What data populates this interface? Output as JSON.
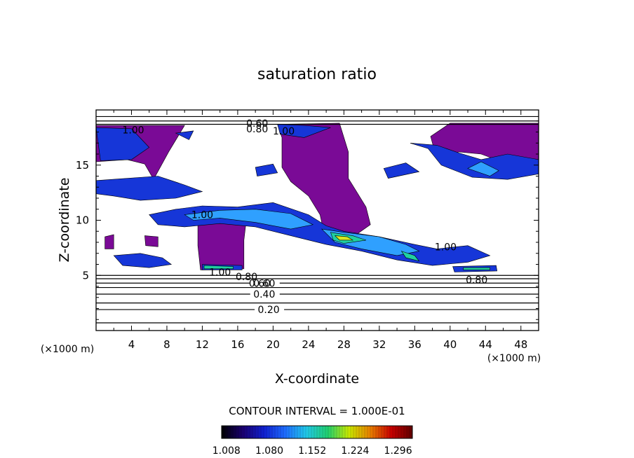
{
  "chart_data": {
    "type": "heatmap",
    "title": "saturation ratio",
    "xlabel": "X-coordinate",
    "ylabel": "Z-coordinate",
    "x_unit_label": "(×1000 m)",
    "z_unit_label": "(×1000 m)",
    "xlim": [
      0,
      50
    ],
    "ylim": [
      0,
      20
    ],
    "x_ticks": [
      4,
      8,
      12,
      16,
      20,
      24,
      28,
      32,
      36,
      40,
      44,
      48
    ],
    "y_ticks": [
      5,
      10,
      15
    ],
    "contour_interval_label": "CONTOUR INTERVAL = 1.000E-01",
    "colorbar": {
      "range": [
        1.0,
        1.32
      ],
      "tick_values": [
        1.008,
        1.08,
        1.152,
        1.224,
        1.296
      ],
      "tick_labels": [
        "1.008",
        "1.080",
        "1.152",
        "1.224",
        "1.296"
      ],
      "colors": [
        "#000000",
        "#1a0070",
        "#1020d0",
        "#1e6cff",
        "#20c8e8",
        "#20d070",
        "#c8e800",
        "#e88000",
        "#c80000",
        "#600000"
      ]
    },
    "fill_colors": {
      "saturated_purple": "#7a0a96",
      "low": "#1636d8",
      "mid": "#2fa0ff",
      "mid_high": "#20d0a0",
      "high": "#d8e820"
    },
    "contour_levels_z": [
      {
        "z": 0.7,
        "label": "",
        "label_x": 0
      },
      {
        "z": 1.9,
        "label": "0.20",
        "label_x": 19.5
      },
      {
        "z": 2.5,
        "label": "",
        "label_x": 0
      },
      {
        "z": 3.3,
        "label": "0.40",
        "label_x": 19
      },
      {
        "z": 3.9,
        "label": "",
        "label_x": 0
      },
      {
        "z": 4.3,
        "label": "0.60",
        "label_x": 19
      },
      {
        "z": 4.7,
        "label": "",
        "label_x": 0
      },
      {
        "z": 5.0,
        "label": "",
        "label_x": 0
      }
    ],
    "contour_labels": [
      {
        "text": "1.00",
        "x": 4.2,
        "z": 18.2
      },
      {
        "text": "0.60",
        "x": 18.2,
        "z": 18.8
      },
      {
        "text": "0.80",
        "x": 18.2,
        "z": 18.3
      },
      {
        "text": "1.00",
        "x": 21.2,
        "z": 18.1
      },
      {
        "text": "1.00",
        "x": 12.0,
        "z": 10.5
      },
      {
        "text": "1.00",
        "x": 14.0,
        "z": 5.3
      },
      {
        "text": "0.80",
        "x": 17.0,
        "z": 4.9
      },
      {
        "text": "0.60",
        "x": 18.5,
        "z": 4.3
      },
      {
        "text": "0.80",
        "x": 43.0,
        "z": 4.6
      },
      {
        "text": "1.00",
        "x": 39.5,
        "z": 7.6
      }
    ],
    "regions": [
      {
        "color": "saturated_purple",
        "points": [
          [
            0,
            18.6
          ],
          [
            10,
            18.6
          ],
          [
            8.2,
            16.2
          ],
          [
            6.5,
            13.7
          ],
          [
            5.5,
            15.1
          ],
          [
            3.5,
            15.5
          ],
          [
            0,
            15.3
          ]
        ]
      },
      {
        "color": "low",
        "points": [
          [
            0,
            18.4
          ],
          [
            4,
            18.3
          ],
          [
            6,
            16.6
          ],
          [
            4,
            15.5
          ],
          [
            0.5,
            15.4
          ]
        ]
      },
      {
        "color": "saturated_purple",
        "points": [
          [
            20.5,
            18.7
          ],
          [
            27.5,
            18.8
          ],
          [
            28.5,
            16.2
          ],
          [
            28.5,
            13.8
          ],
          [
            30.5,
            11.2
          ],
          [
            31,
            9.6
          ],
          [
            28.5,
            8.2
          ],
          [
            25.8,
            8.7
          ],
          [
            25.3,
            10.5
          ],
          [
            24,
            12.2
          ],
          [
            22,
            13.5
          ],
          [
            21,
            14.8
          ],
          [
            21,
            17.5
          ]
        ]
      },
      {
        "color": "low",
        "points": [
          [
            20.5,
            18.7
          ],
          [
            23.5,
            18.6
          ],
          [
            26.5,
            18.4
          ],
          [
            23.5,
            17.5
          ],
          [
            20.8,
            17.8
          ]
        ]
      },
      {
        "color": "saturated_purple",
        "points": [
          [
            37.8,
            17.6
          ],
          [
            40,
            18.8
          ],
          [
            50,
            18.8
          ],
          [
            50,
            14.8
          ],
          [
            47.5,
            14.6
          ],
          [
            45.5,
            15.4
          ],
          [
            43.5,
            16.0
          ],
          [
            41,
            16.2
          ],
          [
            38.5,
            15.5
          ]
        ]
      },
      {
        "color": "low",
        "points": [
          [
            35.5,
            17.0
          ],
          [
            37.5,
            16.5
          ],
          [
            39,
            15.0
          ],
          [
            42.5,
            13.9
          ],
          [
            46.5,
            13.7
          ],
          [
            50,
            14.2
          ],
          [
            50,
            15.5
          ],
          [
            46.5,
            16.0
          ],
          [
            43.5,
            15.5
          ],
          [
            41,
            16.1
          ],
          [
            38.5,
            16.8
          ]
        ]
      },
      {
        "color": "mid",
        "points": [
          [
            42,
            14.7
          ],
          [
            44.5,
            14.0
          ],
          [
            45.5,
            14.5
          ],
          [
            43.5,
            15.3
          ]
        ]
      },
      {
        "color": "low",
        "points": [
          [
            0,
            13.6
          ],
          [
            7,
            14.0
          ],
          [
            10,
            13.2
          ],
          [
            12,
            12.6
          ],
          [
            9,
            12.0
          ],
          [
            5,
            11.8
          ],
          [
            2,
            12.2
          ],
          [
            0,
            12.4
          ]
        ]
      },
      {
        "color": "saturated_purple",
        "points": [
          [
            11.5,
            11.0
          ],
          [
            14,
            11.0
          ],
          [
            17,
            10.2
          ],
          [
            16.7,
            8.2
          ],
          [
            16.7,
            5.6
          ],
          [
            11.8,
            5.5
          ],
          [
            11.5,
            7.7
          ]
        ]
      },
      {
        "color": "low",
        "points": [
          [
            6,
            10.5
          ],
          [
            9,
            11.0
          ],
          [
            12,
            11.3
          ],
          [
            16,
            11.2
          ],
          [
            20,
            11.6
          ],
          [
            24,
            10.5
          ],
          [
            26,
            9.5
          ],
          [
            28,
            9.0
          ],
          [
            32,
            8.5
          ],
          [
            36,
            7.8
          ],
          [
            38.5,
            7.4
          ],
          [
            42,
            7.7
          ],
          [
            44.5,
            6.8
          ],
          [
            42,
            6.2
          ],
          [
            38,
            5.9
          ],
          [
            34,
            6.4
          ],
          [
            30,
            7.2
          ],
          [
            26,
            7.8
          ],
          [
            22,
            8.6
          ],
          [
            18,
            9.4
          ],
          [
            14,
            9.7
          ],
          [
            10,
            9.4
          ],
          [
            7,
            9.6
          ]
        ]
      },
      {
        "color": "mid",
        "points": [
          [
            10,
            10.5
          ],
          [
            14,
            10.9
          ],
          [
            18,
            11.0
          ],
          [
            22,
            10.6
          ],
          [
            24.5,
            9.6
          ],
          [
            22,
            9.2
          ],
          [
            18,
            9.8
          ],
          [
            14,
            10.2
          ],
          [
            11,
            10.0
          ]
        ]
      },
      {
        "color": "mid",
        "points": [
          [
            25.5,
            9.2
          ],
          [
            28,
            8.9
          ],
          [
            32,
            8.5
          ],
          [
            35,
            7.8
          ],
          [
            36.5,
            7.2
          ],
          [
            34,
            6.8
          ],
          [
            30,
            7.4
          ],
          [
            27,
            8.0
          ]
        ]
      },
      {
        "color": "mid_high",
        "points": [
          [
            26.5,
            8.9
          ],
          [
            29,
            8.6
          ],
          [
            30.5,
            8.2
          ],
          [
            28,
            7.9
          ],
          [
            26.8,
            8.2
          ]
        ]
      },
      {
        "color": "high",
        "points": [
          [
            27,
            8.6
          ],
          [
            28.4,
            8.5
          ],
          [
            29,
            8.2
          ],
          [
            27.5,
            8.2
          ]
        ]
      },
      {
        "color": "mid_high",
        "points": [
          [
            34.5,
            7.2
          ],
          [
            36,
            6.8
          ],
          [
            36.5,
            6.3
          ],
          [
            35,
            6.6
          ]
        ]
      },
      {
        "color": "low",
        "points": [
          [
            2,
            6.8
          ],
          [
            5,
            7.0
          ],
          [
            7.5,
            6.6
          ],
          [
            8.5,
            6.0
          ],
          [
            6,
            5.7
          ],
          [
            3,
            5.9
          ]
        ]
      },
      {
        "color": "low",
        "points": [
          [
            12,
            6.0
          ],
          [
            16.5,
            5.9
          ],
          [
            16.5,
            5.5
          ],
          [
            12,
            5.5
          ]
        ]
      },
      {
        "color": "mid_high",
        "points": [
          [
            12.2,
            5.9
          ],
          [
            15.5,
            5.8
          ],
          [
            15.5,
            5.6
          ],
          [
            12.2,
            5.6
          ]
        ]
      },
      {
        "color": "low",
        "points": [
          [
            40.3,
            5.8
          ],
          [
            45.2,
            5.9
          ],
          [
            45.3,
            5.4
          ],
          [
            40.5,
            5.3
          ]
        ]
      },
      {
        "color": "mid_high",
        "points": [
          [
            41.5,
            5.7
          ],
          [
            44.5,
            5.7
          ],
          [
            44.5,
            5.5
          ],
          [
            41.5,
            5.5
          ]
        ]
      },
      {
        "color": "saturated_purple",
        "points": [
          [
            1,
            8.5
          ],
          [
            2,
            8.7
          ],
          [
            2,
            7.4
          ],
          [
            1,
            7.4
          ]
        ]
      },
      {
        "color": "saturated_purple",
        "points": [
          [
            5.5,
            8.6
          ],
          [
            7,
            8.5
          ],
          [
            7,
            7.6
          ],
          [
            5.6,
            7.7
          ]
        ]
      },
      {
        "color": "low",
        "points": [
          [
            18,
            14.8
          ],
          [
            20,
            15.1
          ],
          [
            20.5,
            14.3
          ],
          [
            18.2,
            14.0
          ]
        ]
      },
      {
        "color": "low",
        "points": [
          [
            32.5,
            14.7
          ],
          [
            35,
            15.2
          ],
          [
            36.5,
            14.4
          ],
          [
            33,
            13.8
          ]
        ]
      },
      {
        "color": "low",
        "points": [
          [
            9,
            17.9
          ],
          [
            11,
            18.1
          ],
          [
            10.5,
            17.3
          ]
        ]
      }
    ]
  }
}
